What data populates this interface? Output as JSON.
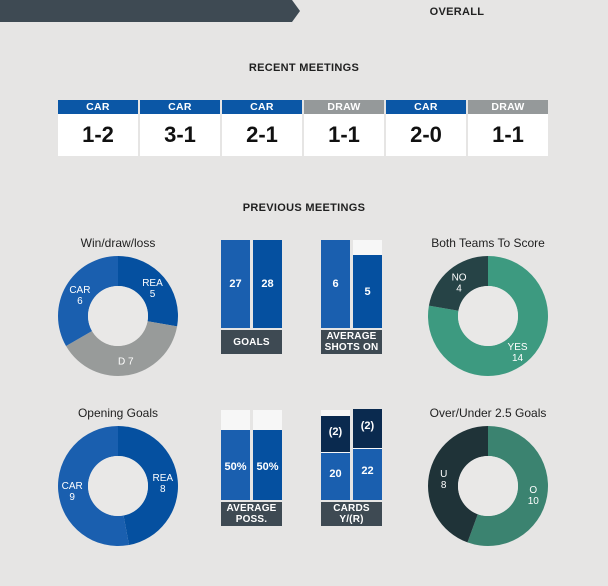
{
  "tabs": {
    "overall": "OVERALL"
  },
  "recent": {
    "title": "RECENT MEETINGS",
    "items": [
      {
        "tag": "CAR",
        "score": "1-2",
        "color": "#0b57a6"
      },
      {
        "tag": "CAR",
        "score": "3-1",
        "color": "#0b57a6"
      },
      {
        "tag": "CAR",
        "score": "2-1",
        "color": "#0b57a6"
      },
      {
        "tag": "DRAW",
        "score": "1-1",
        "color": "#95999a"
      },
      {
        "tag": "CAR",
        "score": "2-0",
        "color": "#0b57a6"
      },
      {
        "tag": "DRAW",
        "score": "1-1",
        "color": "#95999a"
      }
    ]
  },
  "previous": {
    "title": "PREVIOUS MEETINGS"
  },
  "colors": {
    "car": "#1a5faf",
    "rea": "#0550a0",
    "draw": "#989b9a",
    "btts_yes": "#3d9a80",
    "btts_no": "#264346",
    "over": "#3b8370",
    "under": "#1f3338",
    "bar_a": "#1a5faf",
    "bar_b": "#0550a0",
    "cards_red": "#0a2a4f"
  },
  "charts": {
    "wdl": {
      "title": "Win/draw/loss",
      "segments": [
        {
          "label": "REA",
          "value": 5
        },
        {
          "label": "D",
          "value": 7
        },
        {
          "label": "CAR",
          "value": 6
        }
      ]
    },
    "btts": {
      "title": "Both Teams To Score",
      "segments": [
        {
          "label": "YES",
          "value": 14
        },
        {
          "label": "NO",
          "value": 4
        }
      ]
    },
    "opening": {
      "title": "Opening Goals",
      "segments": [
        {
          "label": "REA",
          "value": 8
        },
        {
          "label": "CAR",
          "value": 9
        }
      ]
    },
    "overunder": {
      "title": "Over/Under 2.5 Goals",
      "segments": [
        {
          "label": "O",
          "value": 10
        },
        {
          "label": "U",
          "value": 8
        }
      ]
    },
    "goals": {
      "label": "GOALS",
      "car": "27",
      "rea": "28",
      "car_frac": 1.0,
      "rea_frac": 1.0
    },
    "shots": {
      "label_1": "AVERAGE",
      "label_2": "SHOTS ON",
      "car": "6",
      "rea": "5",
      "car_frac": 1.0,
      "rea_frac": 0.83
    },
    "poss": {
      "label_1": "AVERAGE",
      "label_2": "POSS.",
      "car": "50%",
      "rea": "50%",
      "car_frac": 0.78,
      "rea_frac": 0.78
    },
    "cards": {
      "label_1": "CARDS",
      "label_2": "Y/(R)",
      "car_y": "20",
      "rea_y": "22",
      "car_r": "(2)",
      "rea_r": "(2)",
      "car_y_frac": 0.52,
      "car_r_frac": 0.4,
      "rea_y_frac": 0.57,
      "rea_r_frac": 0.43
    }
  }
}
